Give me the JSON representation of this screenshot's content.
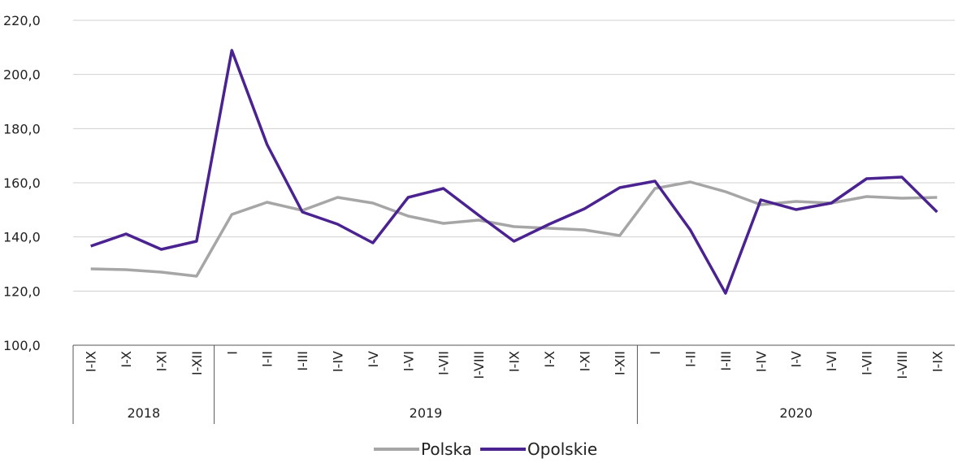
{
  "chart_data": {
    "type": "line",
    "categories": [
      "I-IX",
      "I-X",
      "I-XI",
      "I-XII",
      "I",
      "I-II",
      "I-III",
      "I-IV",
      "I-V",
      "I-VI",
      "I-VII",
      "I-VIII",
      "I-IX",
      "I-X",
      "I-XI",
      "I-XII",
      "I",
      "I-II",
      "I-III",
      "I-IV",
      "I-V",
      "I-VI",
      "I-VII",
      "I-VIII",
      "I-IX"
    ],
    "groups": [
      {
        "label": "2018",
        "size": 4
      },
      {
        "label": "2019",
        "size": 12
      },
      {
        "label": "2020",
        "size": 9
      }
    ],
    "series": [
      {
        "name": "Polska",
        "color": "#a6a6a6",
        "values": [
          128.2,
          127.9,
          127.0,
          125.5,
          148.3,
          152.8,
          149.8,
          154.6,
          152.5,
          147.7,
          145.0,
          146.2,
          143.8,
          143.2,
          142.6,
          140.5,
          157.9,
          160.3,
          156.7,
          151.9,
          153.1,
          152.5,
          154.9,
          154.3,
          154.6
        ]
      },
      {
        "name": "Opolskie",
        "color": "#4b2391",
        "values": [
          136.6,
          141.1,
          135.4,
          138.4,
          208.9,
          174.1,
          149.2,
          144.7,
          137.8,
          154.6,
          157.9,
          148.0,
          138.4,
          144.7,
          150.4,
          158.2,
          160.6,
          142.6,
          119.2,
          153.7,
          150.1,
          152.5,
          161.5,
          162.1,
          149.2
        ]
      }
    ],
    "ylim": [
      100,
      220
    ],
    "yticks": [
      {
        "value": 100,
        "label": "100,0"
      },
      {
        "value": 120,
        "label": "120,0"
      },
      {
        "value": 140,
        "label": "140,0"
      },
      {
        "value": 160,
        "label": "160,0"
      },
      {
        "value": 180,
        "label": "180,0"
      },
      {
        "value": 200,
        "label": "200,0"
      },
      {
        "value": 220,
        "label": "220,0"
      }
    ],
    "grid": true,
    "legend": "bottom"
  }
}
